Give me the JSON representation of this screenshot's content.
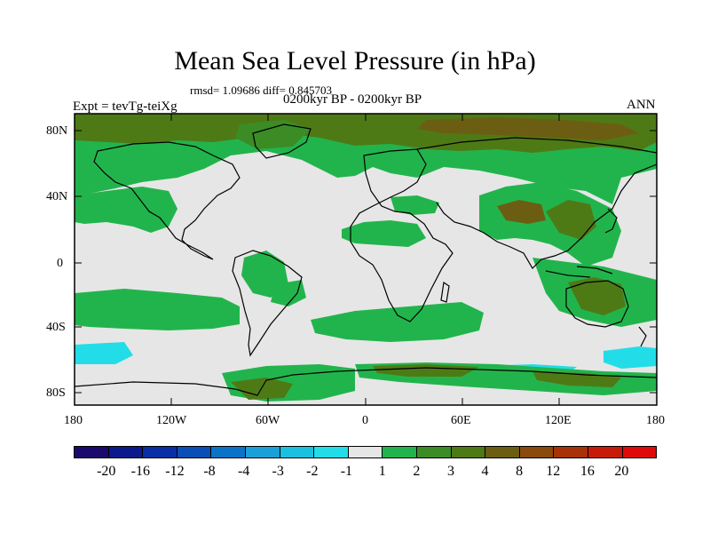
{
  "title": "Mean Sea Level Pressure (in hPa)",
  "stats": "rmsd= 1.09686 diff= 0.845703",
  "experiment": "Expt = tevTg-teiXg",
  "period": "0200kyr BP - 0200kyr BP",
  "season": "ANN",
  "lat_labels": [
    "80N",
    "40N",
    "0",
    "40S",
    "80S"
  ],
  "lon_labels": [
    "180",
    "120W",
    "60W",
    "0",
    "60E",
    "120E",
    "180"
  ],
  "colorbar": {
    "labels": [
      "-20",
      "-16",
      "-12",
      "-8",
      "-4",
      "-3",
      "-2",
      "-1",
      "1",
      "2",
      "3",
      "4",
      "8",
      "12",
      "16",
      "20"
    ],
    "colors": [
      "#1a0a6e",
      "#0a1a8c",
      "#0a2ea6",
      "#0a4fb5",
      "#0a73c8",
      "#1aa0d8",
      "#1ac0e0",
      "#22dde8",
      "#e6e6e6",
      "#22b44c",
      "#3c8c26",
      "#4e7a16",
      "#6b5e12",
      "#8a4a0c",
      "#a83208",
      "#c81a08",
      "#e00a0a"
    ]
  },
  "map_colors": {
    "background": "#e6e6e6",
    "cat_1_2": "#22b44c",
    "cat_2_3": "#3c8c26",
    "cat_3_4": "#4e7a16",
    "cat_4_8": "#6b5e12",
    "cat_neg2_neg1": "#22dde8",
    "coast": "#000000"
  }
}
